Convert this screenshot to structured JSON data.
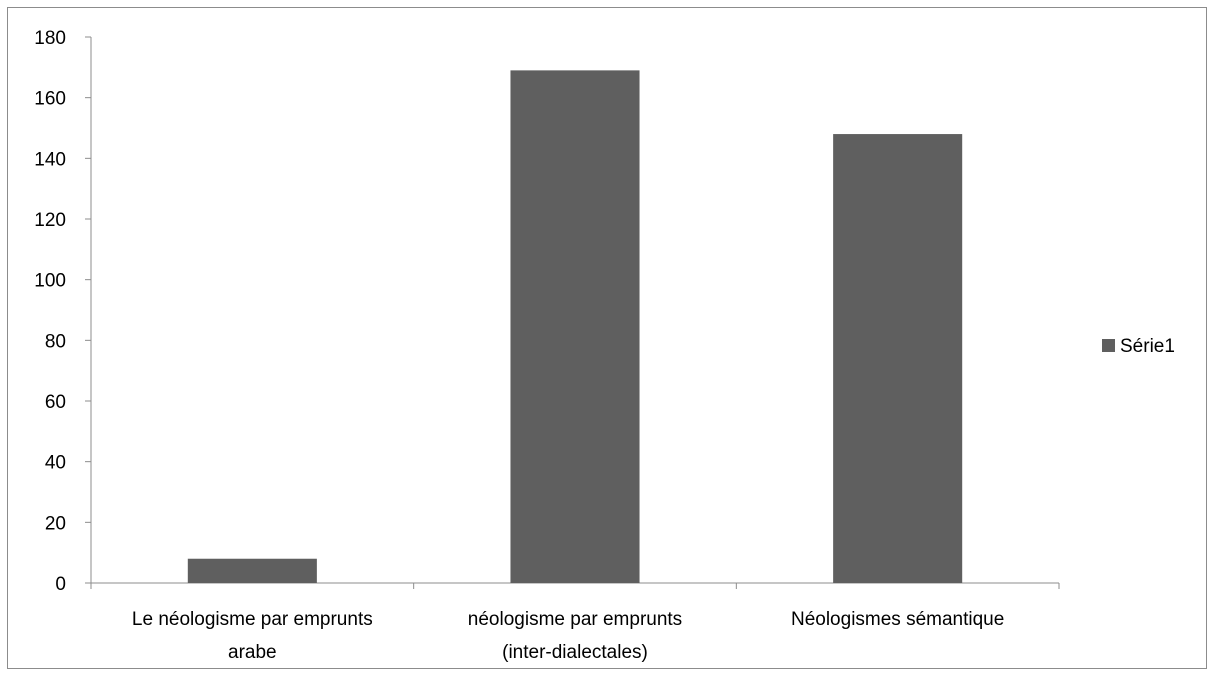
{
  "chart_data": {
    "type": "bar",
    "categories": [
      [
        "Le néologisme par emprunts",
        "arabe"
      ],
      [
        "néologisme par emprunts",
        "(inter-dialectales)"
      ],
      [
        "Néologismes sémantique"
      ]
    ],
    "series": [
      {
        "name": "Série1",
        "values": [
          8,
          169,
          148
        ],
        "color": "#5f5f5f"
      }
    ],
    "yticks": [
      0,
      20,
      40,
      60,
      80,
      100,
      120,
      140,
      160,
      180
    ],
    "ylim": [
      0,
      180
    ],
    "grid": false,
    "legend_position": "right",
    "title": "",
    "xlabel": "",
    "ylabel": ""
  }
}
